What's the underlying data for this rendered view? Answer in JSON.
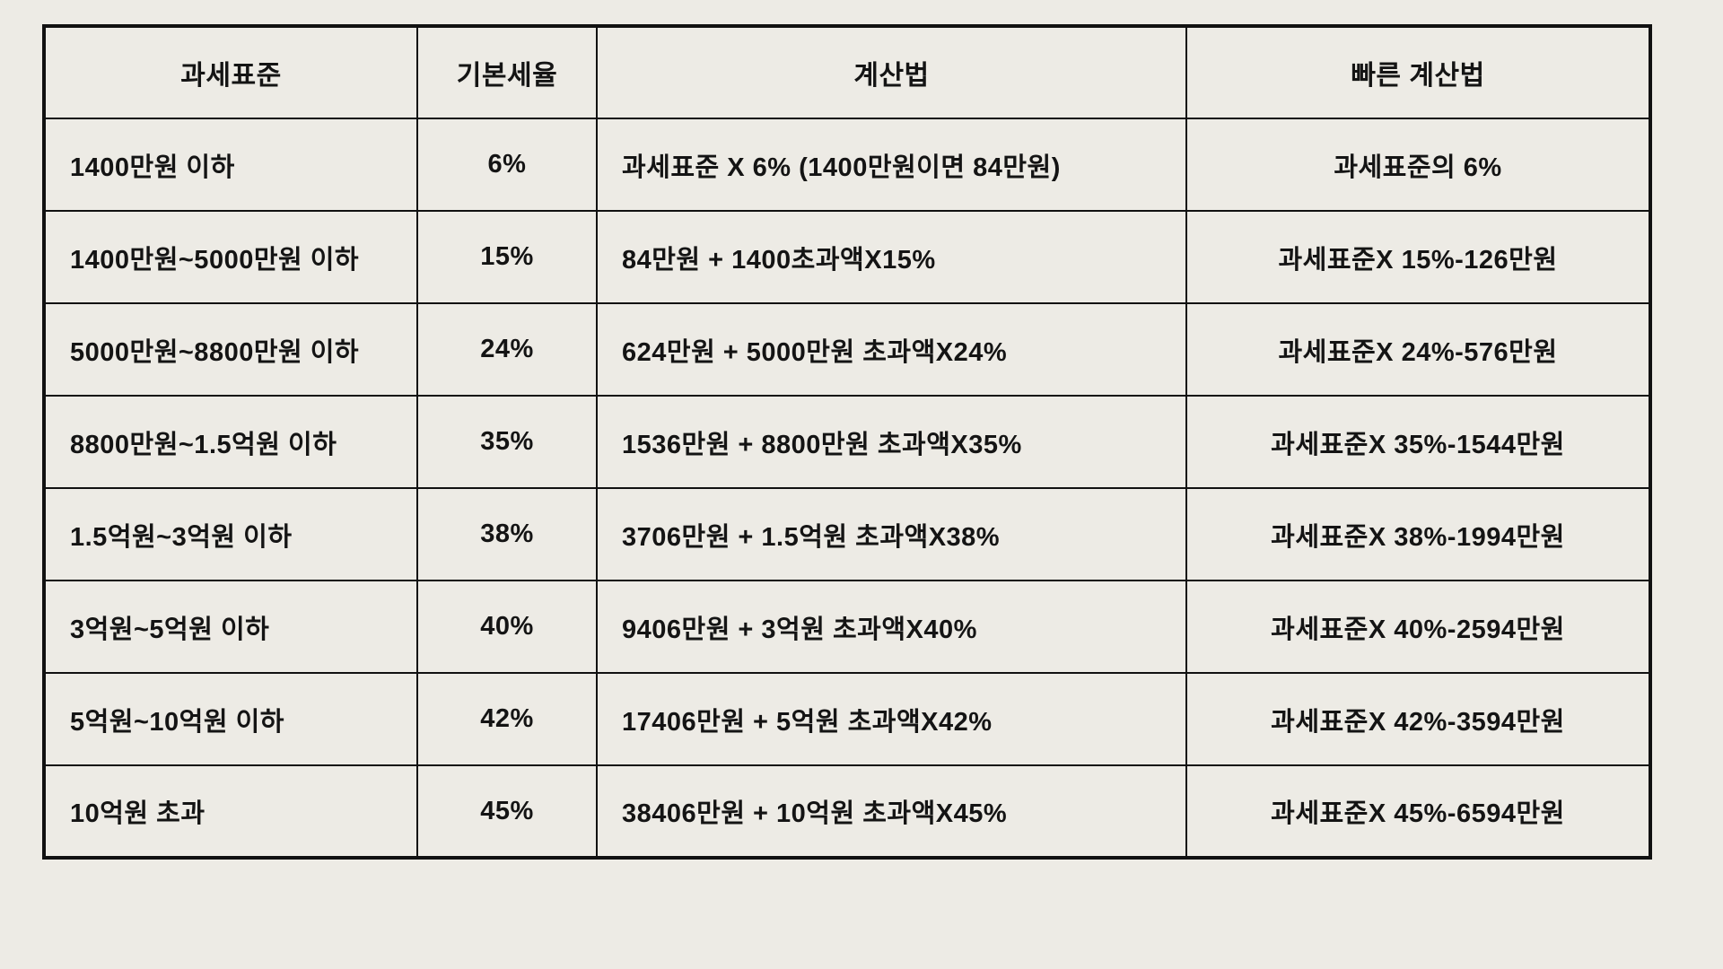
{
  "colors": {
    "background": "#edebe5",
    "border": "#111111",
    "text": "#141414"
  },
  "chart_data": {
    "type": "table",
    "columns": [
      "과세표준",
      "기본세율",
      "계산법",
      "빠른 계산법"
    ],
    "rows": [
      [
        "1400만원 이하",
        "6%",
        "과세표준 X 6% (1400만원이면 84만원)",
        "과세표준의 6%"
      ],
      [
        "1400만원~5000만원 이하",
        "15%",
        "84만원 + 1400초과액X15%",
        "과세표준X 15%-126만원"
      ],
      [
        "5000만원~8800만원 이하",
        "24%",
        "624만원 + 5000만원 초과액X24%",
        "과세표준X 24%-576만원"
      ],
      [
        "8800만원~1.5억원 이하",
        "35%",
        "1536만원 + 8800만원 초과액X35%",
        "과세표준X 35%-1544만원"
      ],
      [
        "1.5억원~3억원 이하",
        "38%",
        "3706만원 + 1.5억원 초과액X38%",
        "과세표준X 38%-1994만원"
      ],
      [
        "3억원~5억원 이하",
        "40%",
        "9406만원 + 3억원 초과액X40%",
        "과세표준X 40%-2594만원"
      ],
      [
        "5억원~10억원 이하",
        "42%",
        "17406만원 + 5억원 초과액X42%",
        "과세표준X 42%-3594만원"
      ],
      [
        "10억원 초과",
        "45%",
        "38406만원 + 10억원 초과액X45%",
        "과세표준X 45%-6594만원"
      ]
    ],
    "notes": {
      "column_alignment": [
        "left",
        "center",
        "left",
        "center"
      ]
    }
  }
}
